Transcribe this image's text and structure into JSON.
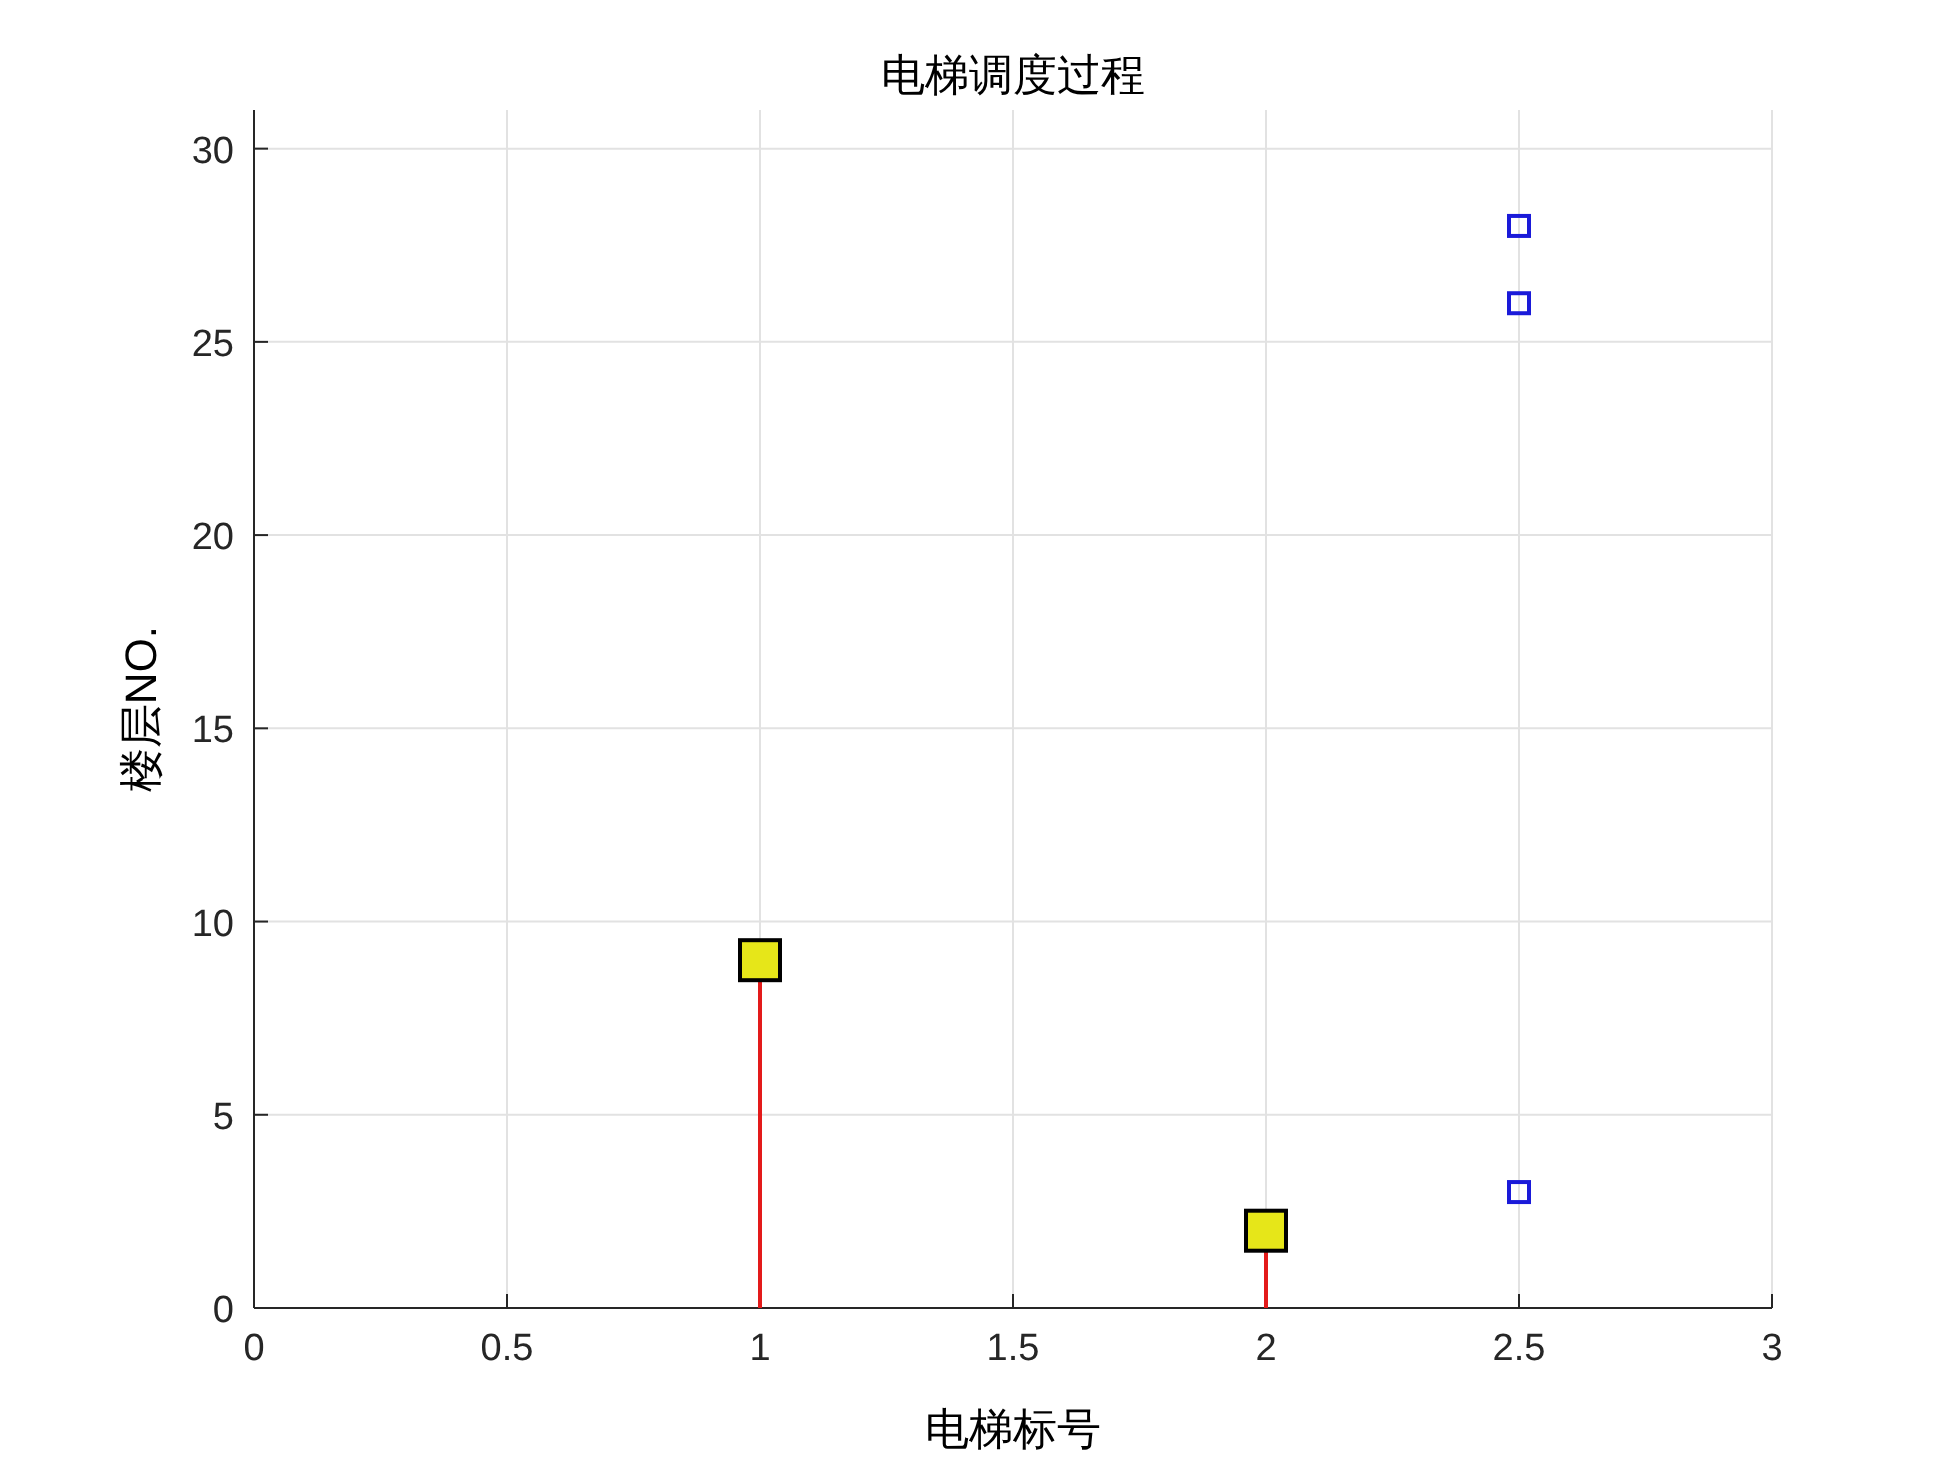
{
  "chart_data": {
    "type": "scatter",
    "title": "电梯调度过程",
    "xlabel": "电梯标号",
    "ylabel": "楼层NO.",
    "xlim": [
      0,
      3
    ],
    "xticks": [
      0,
      0.5,
      1,
      1.5,
      2,
      2.5,
      3
    ],
    "ylim": [
      0,
      31
    ],
    "yticks": [
      0,
      5,
      10,
      15,
      20,
      25,
      30
    ],
    "grid": true,
    "marker": "square",
    "series": [
      {
        "type": "lollipop",
        "color": "#e6e619",
        "x": [
          1,
          2
        ],
        "values": [
          9,
          2
        ]
      },
      {
        "color": "#1a1ad9",
        "x": [
          2.5,
          2.5,
          2.5
        ],
        "values": [
          28,
          26,
          3
        ]
      }
    ]
  }
}
